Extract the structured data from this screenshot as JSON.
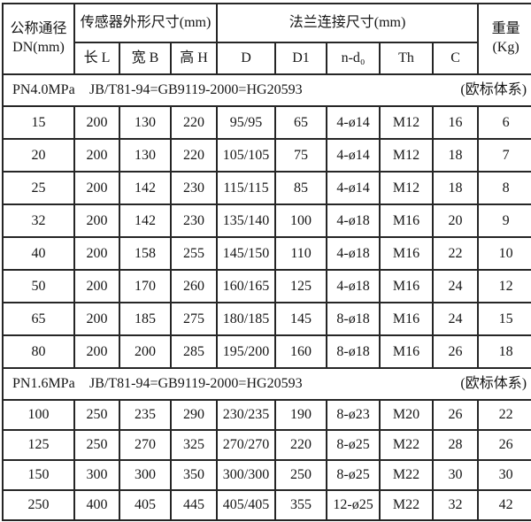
{
  "table": {
    "header": {
      "dn_col": [
        "公称通径",
        "DN(mm)"
      ],
      "sensor_group": "传感器外形尺寸(mm)",
      "flange_group": "法兰连接尺寸(mm)",
      "weight_col": [
        "重量",
        "(Kg)"
      ],
      "sub_columns": [
        "长 L",
        "宽 B",
        "高 H",
        "D",
        "D1",
        "n-d₀",
        "Th",
        "C"
      ]
    },
    "sections": [
      {
        "pressure": "PN4.0MPa",
        "standard": "JB/T81-94=GB9119-2000=HG20593",
        "note": "(欧标体系)",
        "rows": [
          [
            "15",
            "200",
            "130",
            "220",
            "95/95",
            "65",
            "4-ø14",
            "M12",
            "16",
            "6"
          ],
          [
            "20",
            "200",
            "130",
            "220",
            "105/105",
            "75",
            "4-ø14",
            "M12",
            "18",
            "7"
          ],
          [
            "25",
            "200",
            "142",
            "230",
            "115/115",
            "85",
            "4-ø14",
            "M12",
            "18",
            "8"
          ],
          [
            "32",
            "200",
            "142",
            "230",
            "135/140",
            "100",
            "4-ø18",
            "M16",
            "20",
            "9"
          ],
          [
            "40",
            "200",
            "158",
            "255",
            "145/150",
            "110",
            "4-ø18",
            "M16",
            "22",
            "10"
          ],
          [
            "50",
            "200",
            "170",
            "260",
            "160/165",
            "125",
            "4-ø18",
            "M16",
            "24",
            "12"
          ],
          [
            "65",
            "200",
            "185",
            "275",
            "180/185",
            "145",
            "8-ø18",
            "M16",
            "24",
            "15"
          ],
          [
            "80",
            "200",
            "200",
            "285",
            "195/200",
            "160",
            "8-ø18",
            "M16",
            "26",
            "18"
          ]
        ]
      },
      {
        "pressure": "PN1.6MPa",
        "standard": "JB/T81-94=GB9119-2000=HG20593",
        "note": "(欧标体系)",
        "rows": [
          [
            "100",
            "250",
            "235",
            "290",
            "230/235",
            "190",
            "8-ø23",
            "M20",
            "26",
            "22"
          ],
          [
            "125",
            "250",
            "270",
            "325",
            "270/270",
            "220",
            "8-ø25",
            "M22",
            "28",
            "26"
          ],
          [
            "150",
            "300",
            "300",
            "350",
            "300/300",
            "250",
            "8-ø25",
            "M22",
            "30",
            "30"
          ],
          [
            "250",
            "400",
            "405",
            "445",
            "405/405",
            "355",
            "12-ø25",
            "M22",
            "32",
            "42"
          ]
        ]
      }
    ]
  }
}
